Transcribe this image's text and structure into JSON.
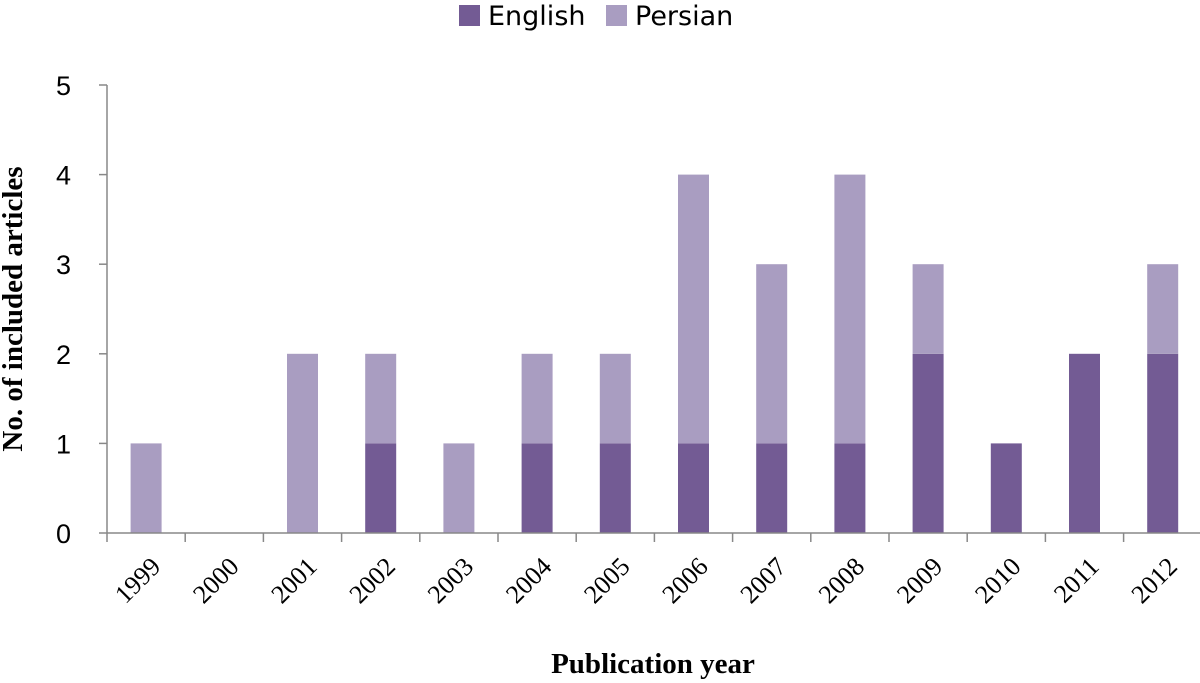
{
  "chart_data": {
    "type": "bar",
    "stacked": true,
    "categories": [
      "1999",
      "2000",
      "2001",
      "2002",
      "2003",
      "2004",
      "2005",
      "2006",
      "2007",
      "2008",
      "2009",
      "2010",
      "2011",
      "2012"
    ],
    "series": [
      {
        "name": "English",
        "color": "#735b94",
        "values": [
          0,
          0,
          0,
          1,
          0,
          1,
          1,
          1,
          1,
          1,
          2,
          1,
          2,
          2
        ]
      },
      {
        "name": "Persian",
        "color": "#a99dc1",
        "values": [
          1,
          0,
          2,
          1,
          1,
          1,
          1,
          3,
          2,
          3,
          1,
          0,
          0,
          1
        ]
      }
    ],
    "xlabel": "Publication year",
    "ylabel": "No. of included articles",
    "ylim": [
      0,
      5
    ],
    "yticks": [
      "0",
      "1",
      "2",
      "3",
      "4",
      "5"
    ],
    "legend_position": "top-center",
    "grid": false
  }
}
